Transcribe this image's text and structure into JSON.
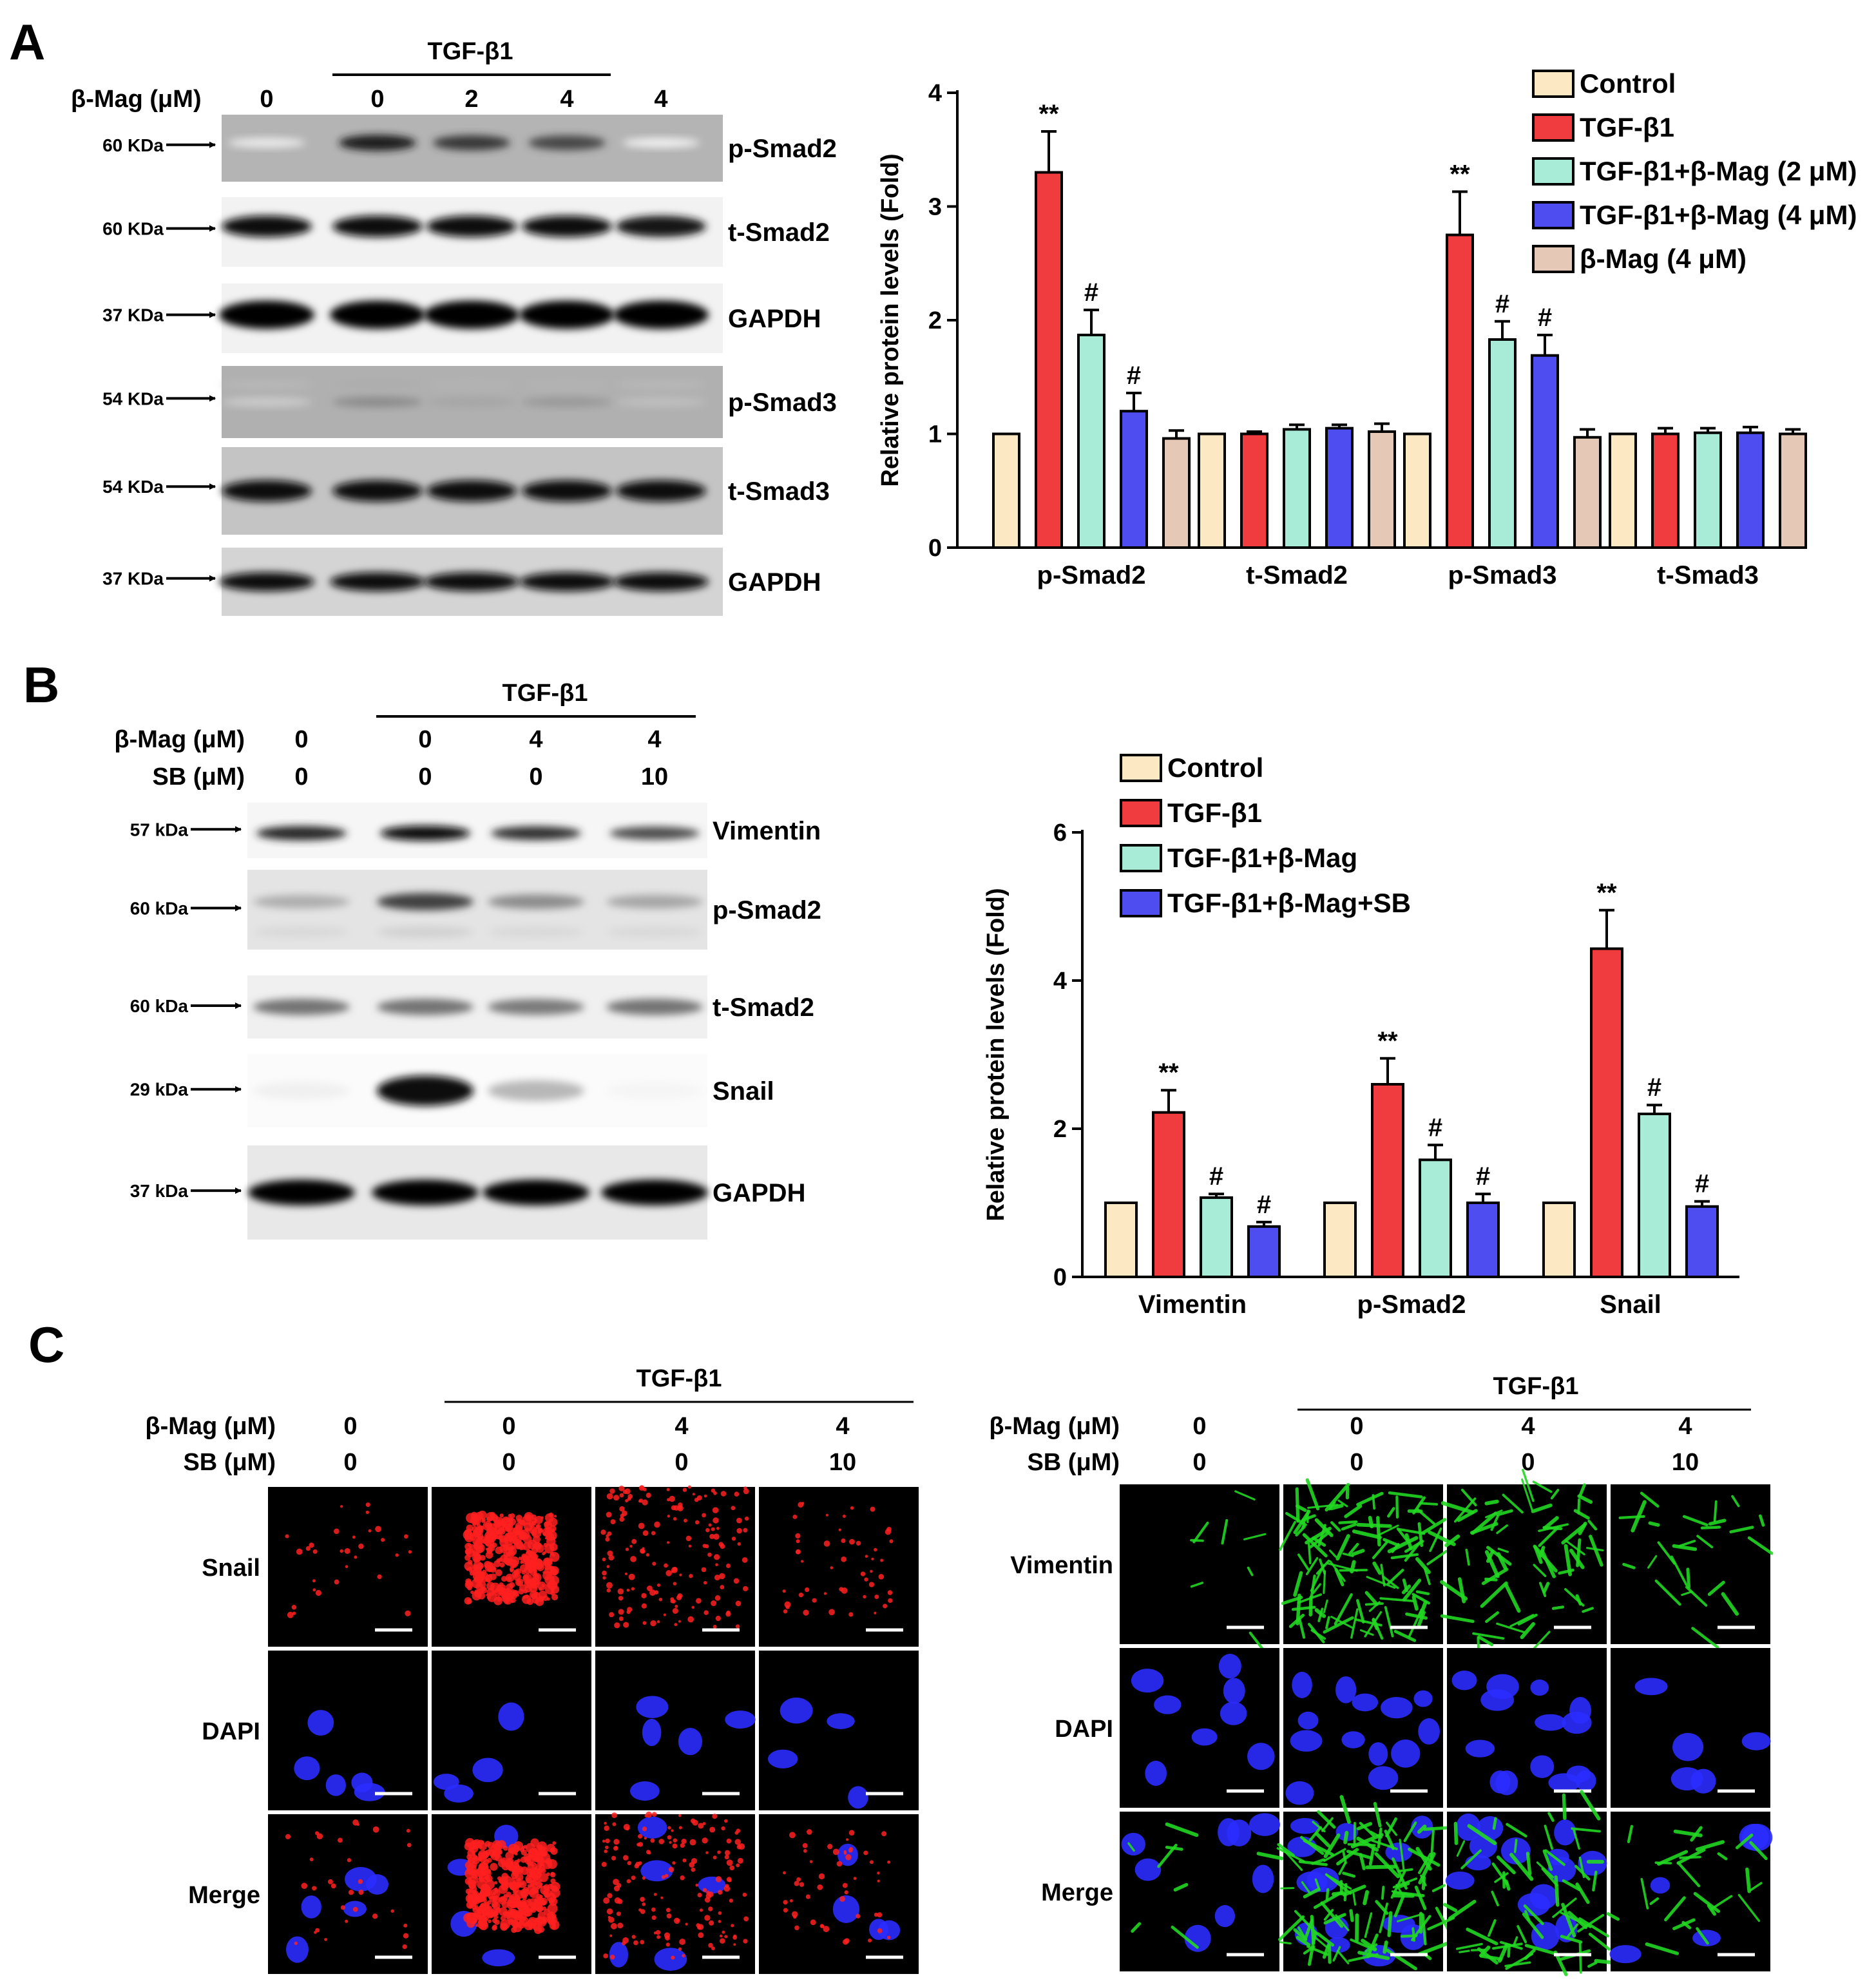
{
  "panels": {
    "a": "A",
    "b": "B",
    "c": "C"
  },
  "panel_a": {
    "treatment": "TGF-β1",
    "row_label": "β-Mag (μM)",
    "lanes": [
      "0",
      "0",
      "2",
      "4",
      "4"
    ],
    "blots": [
      {
        "protein": "p-Smad2",
        "size": "60 KDa"
      },
      {
        "protein": "t-Smad2",
        "size": "60 KDa"
      },
      {
        "protein": "GAPDH",
        "size": "37 KDa"
      },
      {
        "protein": "p-Smad3",
        "size": "54 KDa"
      },
      {
        "protein": "t-Smad3",
        "size": "54 KDa"
      },
      {
        "protein": "GAPDH",
        "size": "37 KDa"
      }
    ]
  },
  "panel_b": {
    "treatment": "TGF-β1",
    "row1_label": "β-Mag (μM)",
    "row2_label": "SB (μM)",
    "row1_values": [
      "0",
      "0",
      "4",
      "4"
    ],
    "row2_values": [
      "0",
      "0",
      "0",
      "10"
    ],
    "blots": [
      {
        "protein": "Vimentin",
        "size": "57 kDa"
      },
      {
        "protein": "p-Smad2",
        "size": "60 kDa"
      },
      {
        "protein": "t-Smad2",
        "size": "60 kDa"
      },
      {
        "protein": "Snail",
        "size": "29 kDa"
      },
      {
        "protein": "GAPDH",
        "size": "37 kDa"
      }
    ]
  },
  "panel_c": {
    "treatment": "TGF-β1",
    "row1_label": "β-Mag (μM)",
    "row2_label": "SB (μM)",
    "row1_values": [
      "0",
      "0",
      "4",
      "4"
    ],
    "row2_values": [
      "0",
      "0",
      "0",
      "10"
    ],
    "left_rows": [
      "Snail",
      "DAPI",
      "Merge"
    ],
    "right_rows": [
      "Vimentin",
      "DAPI",
      "Merge"
    ]
  },
  "chart_data": [
    {
      "type": "bar",
      "ylabel": "Relative protein levels (Fold)",
      "ylim": [
        0,
        4
      ],
      "yticks": [
        0,
        1,
        2,
        3,
        4
      ],
      "categories": [
        "p-Smad2",
        "t-Smad2",
        "p-Smad3",
        "t-Smad3"
      ],
      "legend_position": "top-right",
      "series": [
        {
          "name": "Control",
          "color": "#fde8c4",
          "values": [
            1,
            1,
            1,
            1
          ],
          "errors": [
            0,
            0,
            0,
            0
          ],
          "marks": [
            "",
            "",
            "",
            ""
          ]
        },
        {
          "name": "TGF-β1",
          "color": "#f13c3f",
          "values": [
            3.3,
            1.0,
            2.75,
            1.0
          ],
          "errors": [
            0.36,
            0.02,
            0.38,
            0.05
          ],
          "marks": [
            "**",
            "",
            "**",
            ""
          ]
        },
        {
          "name": "TGF-β1+β-Mag (2 μM)",
          "color": "#a8ecd8",
          "values": [
            1.87,
            1.04,
            1.83,
            1.01
          ],
          "errors": [
            0.22,
            0.04,
            0.16,
            0.04
          ],
          "marks": [
            "#",
            "",
            "#",
            ""
          ]
        },
        {
          "name": "TGF-β1+β-Mag (4 μM)",
          "color": "#4d4df0",
          "values": [
            1.2,
            1.05,
            1.69,
            1.01
          ],
          "errors": [
            0.16,
            0.03,
            0.18,
            0.05
          ],
          "marks": [
            "#",
            "",
            "#",
            ""
          ]
        },
        {
          "name": "β-Mag (4 μM)",
          "color": "#e6c8b6",
          "values": [
            0.96,
            1.02,
            0.97,
            1.0
          ],
          "errors": [
            0.07,
            0.07,
            0.07,
            0.04
          ],
          "marks": [
            "",
            "",
            "",
            ""
          ]
        }
      ]
    },
    {
      "type": "bar",
      "ylabel": "Relative protein levels (Fold)",
      "ylim": [
        0,
        6
      ],
      "yticks": [
        0,
        2,
        4,
        6
      ],
      "categories": [
        "Vimentin",
        "p-Smad2",
        "Snail"
      ],
      "legend_position": "top-left",
      "series": [
        {
          "name": "Control",
          "color": "#fde8c4",
          "values": [
            1,
            1,
            1
          ],
          "errors": [
            0,
            0,
            0
          ],
          "marks": [
            "",
            "",
            ""
          ]
        },
        {
          "name": "TGF-β1",
          "color": "#f13c3f",
          "values": [
            2.22,
            2.6,
            4.43
          ],
          "errors": [
            0.3,
            0.35,
            0.52
          ],
          "marks": [
            "**",
            "**",
            "**"
          ]
        },
        {
          "name": "TGF-β1+β-Mag",
          "color": "#a8ecd8",
          "values": [
            1.07,
            1.58,
            2.2
          ],
          "errors": [
            0.05,
            0.2,
            0.12
          ],
          "marks": [
            "#",
            "#",
            "#"
          ]
        },
        {
          "name": "TGF-β1+β-Mag+SB",
          "color": "#4d4df0",
          "values": [
            0.68,
            1.0,
            0.95
          ],
          "errors": [
            0.06,
            0.12,
            0.07
          ],
          "marks": [
            "#",
            "#",
            "#"
          ]
        }
      ]
    }
  ]
}
